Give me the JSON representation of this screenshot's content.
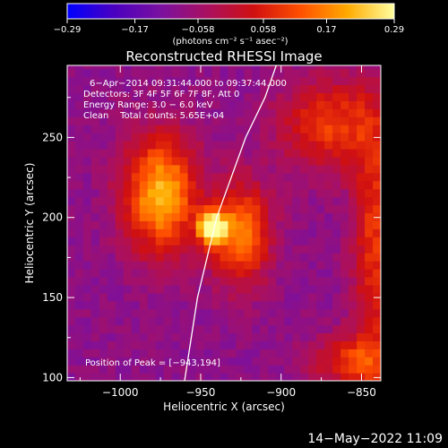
{
  "chart_data": {
    "type": "heatmap",
    "title": "Reconstructed RHESSI Image",
    "xlabel": "Heliocentric X (arcsec)",
    "ylabel": "Heliocentric Y (arcsec)",
    "xlim": [
      -1033,
      -838
    ],
    "ylim": [
      98,
      295
    ],
    "xticks": [
      -1000,
      -950,
      -900,
      -850
    ],
    "xtick_labels": [
      "−1000",
      "−950",
      "−900",
      "−850"
    ],
    "yticks": [
      100,
      150,
      200,
      250
    ],
    "ytick_labels": [
      "100",
      "150",
      "200",
      "250"
    ],
    "colorbar": {
      "min": -0.29,
      "max": 0.29,
      "ticks": [
        -0.29,
        -0.17,
        -0.058,
        0.058,
        0.17,
        0.29
      ],
      "tick_labels": [
        "−0.29",
        "−0.17",
        "−0.058",
        "0.058",
        "0.17",
        "0.29"
      ],
      "units": "(photons cm⁻² s⁻¹ asec⁻²)",
      "stops": [
        "#0000ff",
        "#4a00c0",
        "#7a10a0",
        "#aa1060",
        "#d01010",
        "#ff5000",
        "#ffaa00",
        "#ffffa0"
      ]
    },
    "annotations": [
      "6−Apr−2014 09:31:44.000 to 09:37:44.000",
      "Detectors: 3F 4F 5F 6F 7F 8F, Att 0",
      "Energy Range: 3.0 − 6.0 keV",
      "Clean    Total counts: 5.65E+04"
    ],
    "peak_label": "Position of Peak = [−943,194]",
    "peak": {
      "x": -943,
      "y": 194,
      "value": 0.29
    },
    "sources": [
      {
        "x": -975,
        "y": 215,
        "sx": 16,
        "sy": 26,
        "amp": 0.22
      },
      {
        "x": -943,
        "y": 194,
        "sx": 6,
        "sy": 7,
        "amp": 0.29
      },
      {
        "x": -925,
        "y": 190,
        "sx": 13,
        "sy": 22,
        "amp": 0.17
      },
      {
        "x": -870,
        "y": 258,
        "sx": 22,
        "sy": 20,
        "amp": 0.09
      },
      {
        "x": -842,
        "y": 185,
        "sx": 10,
        "sy": 60,
        "amp": 0.08
      },
      {
        "x": -855,
        "y": 110,
        "sx": 18,
        "sy": 12,
        "amp": 0.08
      }
    ],
    "background": -0.09,
    "limb_curve": [
      [
        -960,
        98
      ],
      [
        -952,
        150
      ],
      [
        -940,
        200
      ],
      [
        -922,
        250
      ],
      [
        -910,
        275
      ],
      [
        -903,
        295
      ]
    ]
  },
  "date_stamp": "14−May−2022 11:09"
}
